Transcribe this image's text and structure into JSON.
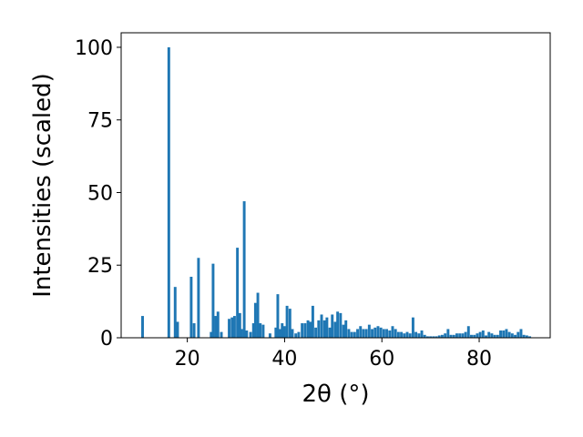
{
  "chart_data": {
    "type": "bar",
    "xlabel": "2θ (°)",
    "ylabel": "Intensities (scaled)",
    "xlim": [
      6.4,
      94.6
    ],
    "ylim": [
      0,
      105
    ],
    "xticks": [
      20,
      40,
      60,
      80
    ],
    "yticks": [
      0,
      25,
      50,
      75,
      100
    ],
    "bar_color": "#1f77b4",
    "bar_width_deg": 0.55,
    "grid": false,
    "legend": "none",
    "points": [
      [
        10.8,
        7.5
      ],
      [
        16.2,
        100
      ],
      [
        17.5,
        17.5
      ],
      [
        18.0,
        5.5
      ],
      [
        20.8,
        21
      ],
      [
        21.4,
        5
      ],
      [
        22.3,
        27.5
      ],
      [
        24.9,
        2
      ],
      [
        25.3,
        25.5
      ],
      [
        25.8,
        7.5
      ],
      [
        26.3,
        9
      ],
      [
        27.0,
        2
      ],
      [
        28.6,
        6.5
      ],
      [
        29.2,
        7
      ],
      [
        29.7,
        7.5
      ],
      [
        30.3,
        31
      ],
      [
        30.8,
        8.5
      ],
      [
        31.2,
        3
      ],
      [
        31.7,
        47
      ],
      [
        32.2,
        2.5
      ],
      [
        33.0,
        2
      ],
      [
        33.6,
        5
      ],
      [
        34.0,
        12
      ],
      [
        34.5,
        15.5
      ],
      [
        35.0,
        5
      ],
      [
        35.6,
        4.5
      ],
      [
        37.0,
        1.5
      ],
      [
        38.2,
        3.5
      ],
      [
        38.6,
        15
      ],
      [
        39.0,
        3
      ],
      [
        39.5,
        5
      ],
      [
        40.0,
        4
      ],
      [
        40.5,
        11
      ],
      [
        41.1,
        10
      ],
      [
        41.6,
        3
      ],
      [
        42.3,
        1.5
      ],
      [
        42.9,
        2
      ],
      [
        43.6,
        5
      ],
      [
        44.2,
        5
      ],
      [
        44.8,
        6
      ],
      [
        45.3,
        5.5
      ],
      [
        45.8,
        11
      ],
      [
        46.4,
        3.5
      ],
      [
        47.0,
        6
      ],
      [
        47.6,
        8
      ],
      [
        48.2,
        6
      ],
      [
        48.7,
        7
      ],
      [
        49.3,
        3.5
      ],
      [
        49.8,
        8
      ],
      [
        50.4,
        5.5
      ],
      [
        50.9,
        9
      ],
      [
        51.5,
        8.5
      ],
      [
        52.1,
        4.5
      ],
      [
        52.6,
        6
      ],
      [
        53.2,
        3
      ],
      [
        53.8,
        2
      ],
      [
        54.4,
        2
      ],
      [
        55.0,
        3
      ],
      [
        55.6,
        4
      ],
      [
        56.2,
        3
      ],
      [
        56.8,
        3
      ],
      [
        57.4,
        4.5
      ],
      [
        58.0,
        3
      ],
      [
        58.6,
        3.5
      ],
      [
        59.2,
        4
      ],
      [
        59.8,
        3.5
      ],
      [
        60.4,
        3
      ],
      [
        61.0,
        3
      ],
      [
        61.6,
        2.5
      ],
      [
        62.2,
        4
      ],
      [
        62.8,
        3
      ],
      [
        63.4,
        2
      ],
      [
        64.0,
        2
      ],
      [
        64.6,
        1.5
      ],
      [
        65.2,
        2
      ],
      [
        65.8,
        1.5
      ],
      [
        66.4,
        7
      ],
      [
        67.0,
        2
      ],
      [
        67.6,
        1.5
      ],
      [
        68.2,
        2.5
      ],
      [
        68.8,
        1
      ],
      [
        69.4,
        0.5
      ],
      [
        70.0,
        0.5
      ],
      [
        70.6,
        0.5
      ],
      [
        71.2,
        0.5
      ],
      [
        71.8,
        0.8
      ],
      [
        72.4,
        1
      ],
      [
        73.0,
        1.5
      ],
      [
        73.6,
        3
      ],
      [
        74.2,
        1
      ],
      [
        74.8,
        1
      ],
      [
        75.4,
        1.5
      ],
      [
        76.0,
        1.5
      ],
      [
        76.6,
        1.5
      ],
      [
        77.2,
        2
      ],
      [
        77.8,
        4
      ],
      [
        78.4,
        1
      ],
      [
        79.0,
        1
      ],
      [
        79.6,
        1.5
      ],
      [
        80.2,
        2
      ],
      [
        80.8,
        2.5
      ],
      [
        81.4,
        0.8
      ],
      [
        82.0,
        2
      ],
      [
        82.6,
        1.5
      ],
      [
        83.2,
        1
      ],
      [
        83.8,
        1
      ],
      [
        84.4,
        2.5
      ],
      [
        85.0,
        2.5
      ],
      [
        85.6,
        3
      ],
      [
        86.2,
        2
      ],
      [
        86.8,
        1.5
      ],
      [
        87.4,
        1
      ],
      [
        88.0,
        2
      ],
      [
        88.6,
        3
      ],
      [
        89.2,
        1
      ],
      [
        89.8,
        0.8
      ],
      [
        90.4,
        0.5
      ]
    ]
  }
}
